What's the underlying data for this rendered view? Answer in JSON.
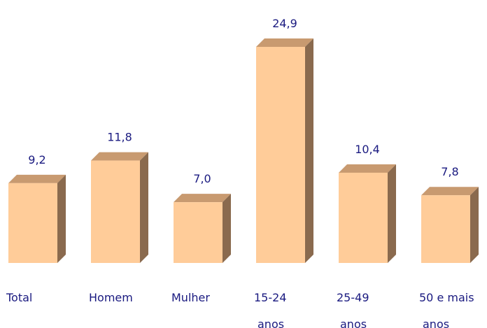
{
  "chart_data": {
    "type": "bar3d",
    "categories": [
      "Total",
      "Homem",
      "Mulher",
      "15-24 anos",
      "25-49 anos",
      "50 e mais anos"
    ],
    "values": [
      9.2,
      11.8,
      7.0,
      24.9,
      10.4,
      7.8
    ],
    "value_labels": [
      "9,2",
      "11,8",
      "7,0",
      "24,9",
      "10,4",
      "7,8"
    ],
    "color": "#ffcc99"
  }
}
